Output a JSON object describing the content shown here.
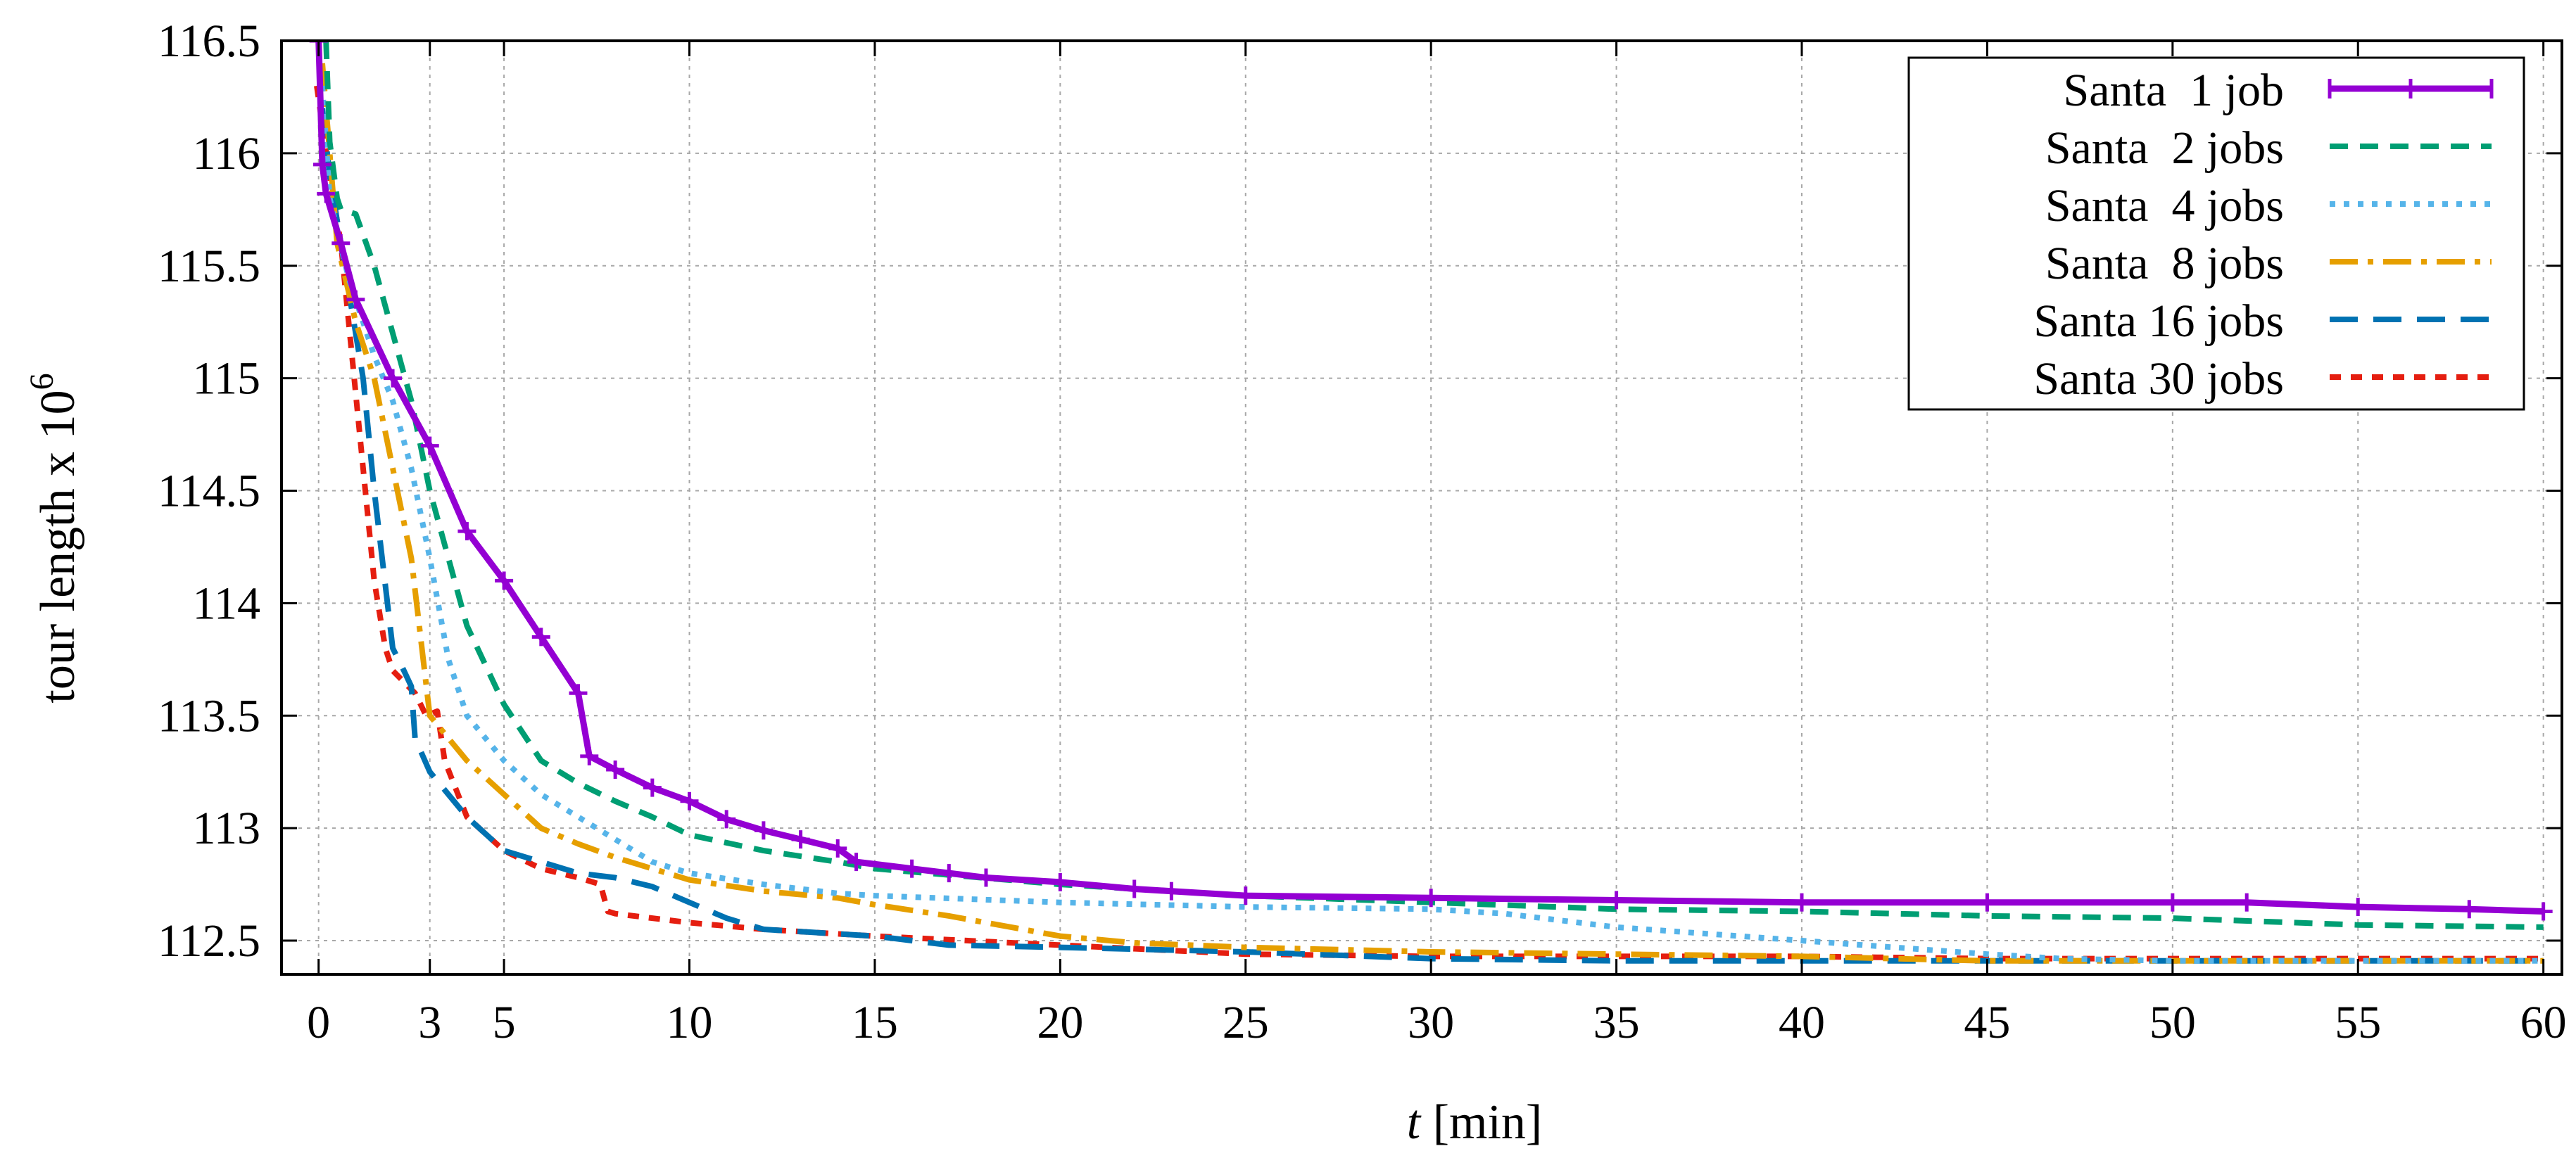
{
  "chart_data": {
    "type": "line",
    "title": "",
    "xlabel_italic": "t",
    "xlabel_rest": " [min]",
    "ylabel_main": "tour length x 10",
    "ylabel_exp": "6",
    "xlim": [
      -1,
      60.5
    ],
    "ylim": [
      112.35,
      116.5
    ],
    "xticks": [
      0,
      3,
      5,
      10,
      15,
      20,
      25,
      30,
      35,
      40,
      45,
      50,
      55,
      60
    ],
    "yticks": [
      112.5,
      113,
      113.5,
      114,
      114.5,
      115,
      115.5,
      116,
      116.5
    ],
    "ytick_labels": [
      "112.5",
      "113",
      "113.5",
      "114",
      "114.5",
      "115",
      "115.5",
      "116",
      "116.5"
    ],
    "grid": true,
    "legend_position": "top-right",
    "series": [
      {
        "name": "Santa  1 job",
        "color": "#9400d3",
        "dash": "",
        "markers": true,
        "points": [
          [
            0,
            116.5
          ],
          [
            0.1,
            115.95
          ],
          [
            0.2,
            115.82
          ],
          [
            0.6,
            115.6
          ],
          [
            1,
            115.35
          ],
          [
            2,
            115
          ],
          [
            3,
            114.7
          ],
          [
            4,
            114.32
          ],
          [
            5,
            114.1
          ],
          [
            6,
            113.85
          ],
          [
            7,
            113.6
          ],
          [
            7.3,
            113.32
          ],
          [
            8,
            113.26
          ],
          [
            9,
            113.18
          ],
          [
            10,
            113.12
          ],
          [
            11,
            113.04
          ],
          [
            12,
            112.99
          ],
          [
            13,
            112.95
          ],
          [
            14,
            112.91
          ],
          [
            14.5,
            112.85
          ],
          [
            16,
            112.82
          ],
          [
            17,
            112.8
          ],
          [
            18,
            112.78
          ],
          [
            20,
            112.76
          ],
          [
            22,
            112.73
          ],
          [
            23,
            112.72
          ],
          [
            25,
            112.7
          ],
          [
            30,
            112.69
          ],
          [
            35,
            112.68
          ],
          [
            40,
            112.67
          ],
          [
            45,
            112.67
          ],
          [
            50,
            112.67
          ],
          [
            52,
            112.67
          ],
          [
            55,
            112.65
          ],
          [
            58,
            112.64
          ],
          [
            60,
            112.63
          ]
        ]
      },
      {
        "name": "Santa  2 jobs",
        "color": "#009e73",
        "dash": "26 17",
        "markers": false,
        "points": [
          [
            0.2,
            116.5
          ],
          [
            0.3,
            116.05
          ],
          [
            0.5,
            115.8
          ],
          [
            0.6,
            115.75
          ],
          [
            1,
            115.73
          ],
          [
            1.5,
            115.5
          ],
          [
            2,
            115.2
          ],
          [
            2.5,
            114.9
          ],
          [
            3,
            114.5
          ],
          [
            3.5,
            114.2
          ],
          [
            4,
            113.9
          ],
          [
            5,
            113.55
          ],
          [
            6,
            113.3
          ],
          [
            7,
            113.2
          ],
          [
            8,
            113.12
          ],
          [
            9,
            113.05
          ],
          [
            10,
            112.97
          ],
          [
            12,
            112.9
          ],
          [
            14,
            112.85
          ],
          [
            15,
            112.82
          ],
          [
            20,
            112.75
          ],
          [
            25,
            112.7
          ],
          [
            30,
            112.67
          ],
          [
            35,
            112.64
          ],
          [
            40,
            112.63
          ],
          [
            45,
            112.61
          ],
          [
            50,
            112.6
          ],
          [
            55,
            112.57
          ],
          [
            60,
            112.56
          ]
        ]
      },
      {
        "name": "Santa  4 jobs",
        "color": "#56b4e9",
        "dash": "8 12",
        "markers": false,
        "points": [
          [
            0.1,
            116.3
          ],
          [
            0.3,
            115.8
          ],
          [
            0.8,
            115.45
          ],
          [
            1.5,
            115.1
          ],
          [
            2,
            114.9
          ],
          [
            2.5,
            114.6
          ],
          [
            3,
            114.2
          ],
          [
            3.5,
            113.75
          ],
          [
            4,
            113.5
          ],
          [
            5,
            113.3
          ],
          [
            6,
            113.15
          ],
          [
            7,
            113.05
          ],
          [
            8,
            112.95
          ],
          [
            9,
            112.85
          ],
          [
            10,
            112.8
          ],
          [
            12,
            112.75
          ],
          [
            14,
            112.71
          ],
          [
            15,
            112.7
          ],
          [
            20,
            112.67
          ],
          [
            25,
            112.65
          ],
          [
            30,
            112.64
          ],
          [
            32,
            112.62
          ],
          [
            35,
            112.56
          ],
          [
            40,
            112.5
          ],
          [
            45,
            112.44
          ],
          [
            47,
            112.42
          ],
          [
            50,
            112.41
          ],
          [
            55,
            112.41
          ],
          [
            60,
            112.41
          ]
        ]
      },
      {
        "name": "Santa  8 jobs",
        "color": "#e69f00",
        "dash": "40 14 8 14",
        "markers": false,
        "points": [
          [
            0.1,
            116.4
          ],
          [
            0.5,
            115.6
          ],
          [
            1,
            115.25
          ],
          [
            1.5,
            115
          ],
          [
            2,
            114.6
          ],
          [
            2.5,
            114.2
          ],
          [
            3,
            113.5
          ],
          [
            3.5,
            113.4
          ],
          [
            4,
            113.3
          ],
          [
            5,
            113.15
          ],
          [
            6,
            113
          ],
          [
            7,
            112.93
          ],
          [
            8,
            112.87
          ],
          [
            9,
            112.82
          ],
          [
            10,
            112.77
          ],
          [
            12,
            112.72
          ],
          [
            14,
            112.69
          ],
          [
            15,
            112.66
          ],
          [
            17,
            112.61
          ],
          [
            20,
            112.52
          ],
          [
            22,
            112.49
          ],
          [
            25,
            112.47
          ],
          [
            30,
            112.45
          ],
          [
            35,
            112.44
          ],
          [
            40,
            112.43
          ],
          [
            45,
            112.41
          ],
          [
            50,
            112.41
          ],
          [
            55,
            112.41
          ],
          [
            60,
            112.41
          ]
        ]
      },
      {
        "name": "Santa 16 jobs",
        "color": "#0072b2",
        "dash": "40 22",
        "markers": false,
        "points": [
          [
            0.1,
            116.2
          ],
          [
            0.3,
            115.9
          ],
          [
            0.8,
            115.4
          ],
          [
            1.2,
            115
          ],
          [
            1.5,
            114.5
          ],
          [
            2,
            113.8
          ],
          [
            2.3,
            113.7
          ],
          [
            2.5,
            113.63
          ],
          [
            2.6,
            113.4
          ],
          [
            3,
            113.25
          ],
          [
            4,
            113.05
          ],
          [
            5,
            112.9
          ],
          [
            6,
            112.85
          ],
          [
            7,
            112.8
          ],
          [
            8,
            112.78
          ],
          [
            9,
            112.74
          ],
          [
            10,
            112.67
          ],
          [
            11,
            112.6
          ],
          [
            12,
            112.55
          ],
          [
            13,
            112.54
          ],
          [
            14,
            112.53
          ],
          [
            15,
            112.52
          ],
          [
            17,
            112.48
          ],
          [
            20,
            112.47
          ],
          [
            25,
            112.45
          ],
          [
            30,
            112.42
          ],
          [
            35,
            112.41
          ],
          [
            40,
            112.41
          ],
          [
            45,
            112.41
          ],
          [
            50,
            112.41
          ],
          [
            55,
            112.41
          ],
          [
            60,
            112.41
          ]
        ]
      },
      {
        "name": "Santa 30 jobs",
        "color": "#e51e10",
        "dash": "16 14",
        "markers": false,
        "points": [
          [
            -0.05,
            116.3
          ],
          [
            0.3,
            115.9
          ],
          [
            0.6,
            115.6
          ],
          [
            0.9,
            115.1
          ],
          [
            1.2,
            114.6
          ],
          [
            1.5,
            114.1
          ],
          [
            1.8,
            113.8
          ],
          [
            2,
            113.7
          ],
          [
            2.3,
            113.65
          ],
          [
            2.6,
            113.6
          ],
          [
            2.9,
            113.5
          ],
          [
            3.2,
            113.52
          ],
          [
            3.4,
            113.3
          ],
          [
            4,
            113.05
          ],
          [
            5,
            112.9
          ],
          [
            6,
            112.82
          ],
          [
            7,
            112.78
          ],
          [
            7.6,
            112.75
          ],
          [
            7.8,
            112.63
          ],
          [
            8,
            112.62
          ],
          [
            10,
            112.58
          ],
          [
            12,
            112.55
          ],
          [
            15,
            112.52
          ],
          [
            20,
            112.48
          ],
          [
            25,
            112.44
          ],
          [
            30,
            112.43
          ],
          [
            35,
            112.43
          ],
          [
            40,
            112.43
          ],
          [
            45,
            112.42
          ],
          [
            50,
            112.42
          ],
          [
            55,
            112.42
          ],
          [
            60,
            112.42
          ]
        ]
      }
    ]
  }
}
